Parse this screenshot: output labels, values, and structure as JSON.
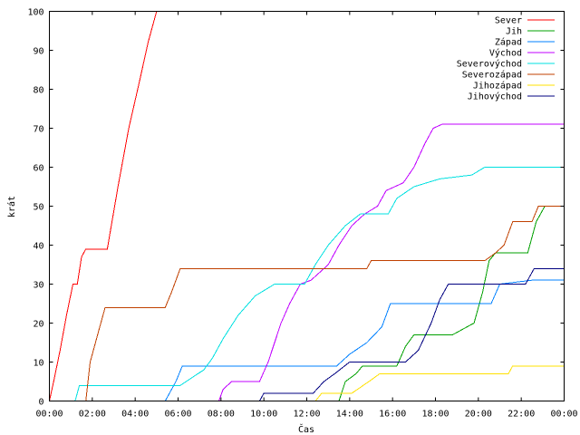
{
  "chart_data": {
    "type": "line",
    "title": "",
    "xlabel": "Čas",
    "ylabel": "krát",
    "xlim": [
      0,
      24
    ],
    "ylim": [
      0,
      100
    ],
    "grid": false,
    "legend_position": "top-right",
    "x_ticks": [
      {
        "value": 0,
        "label": "00:00"
      },
      {
        "value": 2,
        "label": "02:00"
      },
      {
        "value": 4,
        "label": "04:00"
      },
      {
        "value": 6,
        "label": "06:00"
      },
      {
        "value": 8,
        "label": "08:00"
      },
      {
        "value": 10,
        "label": "10:00"
      },
      {
        "value": 12,
        "label": "12:00"
      },
      {
        "value": 14,
        "label": "14:00"
      },
      {
        "value": 16,
        "label": "16:00"
      },
      {
        "value": 18,
        "label": "18:00"
      },
      {
        "value": 20,
        "label": "20:00"
      },
      {
        "value": 22,
        "label": "22:00"
      },
      {
        "value": 24,
        "label": "00:00"
      }
    ],
    "y_ticks": [
      {
        "value": 0,
        "label": "0"
      },
      {
        "value": 10,
        "label": "10"
      },
      {
        "value": 20,
        "label": "20"
      },
      {
        "value": 30,
        "label": "30"
      },
      {
        "value": 40,
        "label": "40"
      },
      {
        "value": 50,
        "label": "50"
      },
      {
        "value": 60,
        "label": "60"
      },
      {
        "value": 70,
        "label": "70"
      },
      {
        "value": 80,
        "label": "80"
      },
      {
        "value": 90,
        "label": "90"
      },
      {
        "value": 100,
        "label": "100"
      }
    ],
    "series": [
      {
        "name": "Sever",
        "color": "#ff0000",
        "points": [
          [
            0,
            0
          ],
          [
            0.2,
            5
          ],
          [
            0.5,
            13
          ],
          [
            0.8,
            22
          ],
          [
            1.1,
            30
          ],
          [
            1.3,
            30
          ],
          [
            1.5,
            37
          ],
          [
            1.7,
            39
          ],
          [
            2.7,
            39
          ],
          [
            3.2,
            55
          ],
          [
            3.7,
            70
          ],
          [
            4.2,
            82
          ],
          [
            4.6,
            92
          ],
          [
            5.0,
            100
          ]
        ]
      },
      {
        "name": "Jih",
        "color": "#00a000",
        "points": [
          [
            13.5,
            0
          ],
          [
            13.8,
            5
          ],
          [
            14.3,
            7
          ],
          [
            14.6,
            9
          ],
          [
            16.2,
            9
          ],
          [
            16.6,
            14
          ],
          [
            17.0,
            17
          ],
          [
            18.8,
            17
          ],
          [
            19.8,
            20
          ],
          [
            20.2,
            28
          ],
          [
            20.5,
            36
          ],
          [
            20.8,
            38
          ],
          [
            22.3,
            38
          ],
          [
            22.7,
            46
          ],
          [
            23.1,
            50
          ],
          [
            24,
            50
          ]
        ]
      },
      {
        "name": "Západ",
        "color": "#0080ff",
        "points": [
          [
            5.4,
            0
          ],
          [
            5.6,
            2
          ],
          [
            5.9,
            5
          ],
          [
            6.2,
            9
          ],
          [
            13.4,
            9
          ],
          [
            14.0,
            12
          ],
          [
            14.8,
            15
          ],
          [
            15.5,
            19
          ],
          [
            15.9,
            25
          ],
          [
            20.6,
            25
          ],
          [
            21.0,
            30
          ],
          [
            22.5,
            31
          ],
          [
            24,
            31
          ]
        ]
      },
      {
        "name": "Východ",
        "color": "#c000ff",
        "points": [
          [
            7.9,
            0
          ],
          [
            8.1,
            3
          ],
          [
            8.5,
            5
          ],
          [
            9.8,
            5
          ],
          [
            10.2,
            10
          ],
          [
            10.8,
            20
          ],
          [
            11.2,
            25
          ],
          [
            11.7,
            30
          ],
          [
            12.2,
            31
          ],
          [
            13.0,
            35
          ],
          [
            13.5,
            40
          ],
          [
            14.1,
            45
          ],
          [
            14.7,
            48
          ],
          [
            15.3,
            50
          ],
          [
            15.7,
            54
          ],
          [
            16.5,
            56
          ],
          [
            17.0,
            60
          ],
          [
            17.5,
            66
          ],
          [
            17.9,
            70
          ],
          [
            18.3,
            71
          ],
          [
            24,
            71
          ]
        ]
      },
      {
        "name": "Severovýchod",
        "color": "#00e0e0",
        "points": [
          [
            1.2,
            0
          ],
          [
            1.4,
            4
          ],
          [
            6.1,
            4
          ],
          [
            7.2,
            8
          ],
          [
            7.6,
            11
          ],
          [
            8.1,
            16
          ],
          [
            8.8,
            22
          ],
          [
            9.6,
            27
          ],
          [
            10.5,
            30
          ],
          [
            11.9,
            30
          ],
          [
            12.4,
            35
          ],
          [
            13.0,
            40
          ],
          [
            13.8,
            45
          ],
          [
            14.5,
            48
          ],
          [
            15.8,
            48
          ],
          [
            16.2,
            52
          ],
          [
            17.0,
            55
          ],
          [
            18.2,
            57
          ],
          [
            19.7,
            58
          ],
          [
            20.3,
            60
          ],
          [
            24,
            60
          ]
        ]
      },
      {
        "name": "Severozápad",
        "color": "#c04000",
        "points": [
          [
            1.7,
            0
          ],
          [
            1.9,
            10
          ],
          [
            2.3,
            18
          ],
          [
            2.6,
            24
          ],
          [
            5.4,
            24
          ],
          [
            5.7,
            28
          ],
          [
            6.1,
            34
          ],
          [
            14.8,
            34
          ],
          [
            15.0,
            36
          ],
          [
            20.3,
            36
          ],
          [
            20.8,
            38
          ],
          [
            21.2,
            40
          ],
          [
            21.6,
            46
          ],
          [
            22.5,
            46
          ],
          [
            22.8,
            50
          ],
          [
            24,
            50
          ]
        ]
      },
      {
        "name": "Jihozápad",
        "color": "#ffe000",
        "points": [
          [
            12.4,
            0
          ],
          [
            12.7,
            2
          ],
          [
            14.1,
            2
          ],
          [
            14.9,
            5
          ],
          [
            15.4,
            7
          ],
          [
            21.4,
            7
          ],
          [
            21.6,
            9
          ],
          [
            24,
            9
          ]
        ]
      },
      {
        "name": "Jihovýchod",
        "color": "#000080",
        "points": [
          [
            9.8,
            0
          ],
          [
            10.0,
            2
          ],
          [
            12.3,
            2
          ],
          [
            12.8,
            5
          ],
          [
            13.3,
            7
          ],
          [
            14.0,
            10
          ],
          [
            16.6,
            10
          ],
          [
            17.2,
            13
          ],
          [
            17.8,
            20
          ],
          [
            18.2,
            26
          ],
          [
            18.6,
            30
          ],
          [
            22.2,
            30
          ],
          [
            22.6,
            34
          ],
          [
            24,
            34
          ]
        ]
      }
    ]
  }
}
